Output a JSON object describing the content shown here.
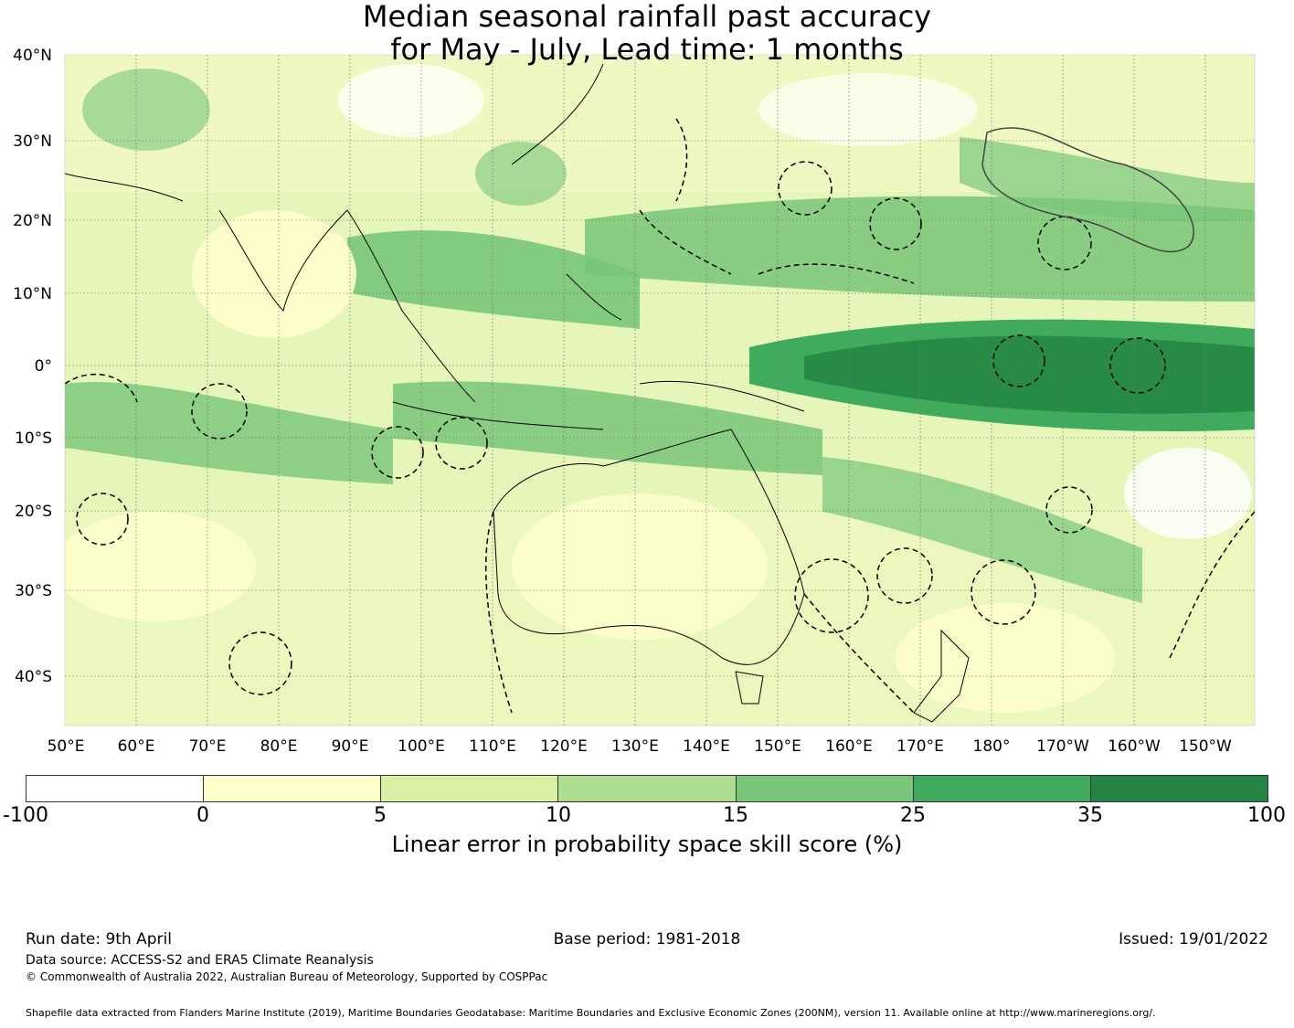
{
  "title": {
    "line1": "Median seasonal rainfall past accuracy",
    "line2": "for May - July, Lead time: 1 months"
  },
  "map": {
    "lat_labels": [
      "40°N",
      "30°N",
      "20°N",
      "10°N",
      "0°",
      "10°S",
      "20°S",
      "30°S",
      "40°S"
    ],
    "lon_labels": [
      "50°E",
      "60°E",
      "70°E",
      "80°E",
      "90°E",
      "100°E",
      "110°E",
      "120°E",
      "130°E",
      "140°E",
      "150°E",
      "160°E",
      "170°E",
      "180°",
      "170°W",
      "160°W",
      "150°W"
    ]
  },
  "legend": {
    "ticks": [
      "-100",
      "0",
      "5",
      "10",
      "15",
      "25",
      "35",
      "100"
    ],
    "colors": [
      "#ffffff",
      "#ffffcc",
      "#d9f0a3",
      "#addd8e",
      "#78c679",
      "#41ab5d",
      "#238443"
    ],
    "label": "Linear error in probability space skill score (%)"
  },
  "footer": {
    "run_date": "Run date: 9th April",
    "base_period": "Base period: 1981-2018",
    "issued": "Issued: 19/01/2022",
    "data_source": "Data source: ACCESS-S2 and ERA5 Climate Reanalysis",
    "copyright": "© Commonwealth of Australia 2022, Australian Bureau of Meteorology, Supported by COSPPac",
    "shapefile": "Shapefile data extracted from Flanders Marine Institute (2019), Maritime Boundaries Geodatabase: Maritime Boundaries and Exclusive Economic Zones (200NM), version 11. Available online at http://www.marineregions.org/."
  }
}
